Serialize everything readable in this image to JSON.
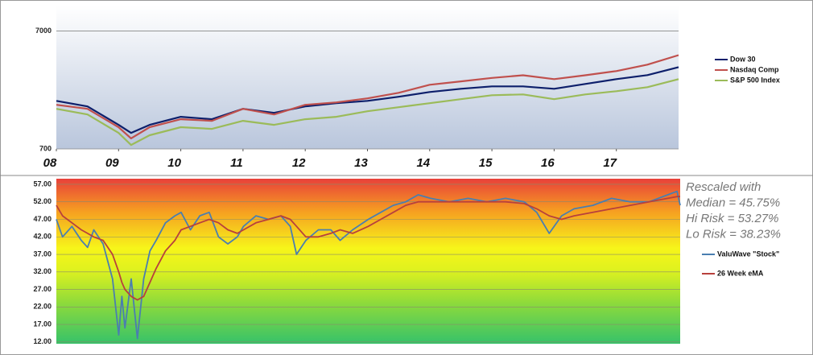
{
  "chart_data": [
    {
      "type": "line",
      "log": true,
      "grid": true,
      "x": [
        2008,
        2008.5,
        2009,
        2009.2,
        2009.5,
        2010,
        2010.5,
        2011,
        2011.5,
        2012,
        2012.5,
        2013,
        2013.5,
        2014,
        2014.5,
        2015,
        2015.5,
        2016,
        2016.5,
        2017,
        2017.5,
        2018
      ],
      "xlim": [
        2008,
        2018
      ],
      "xticks": [
        {
          "value": 2008,
          "label": "08"
        },
        {
          "value": 2009,
          "label": "09"
        },
        2010,
        2011,
        2012,
        2013,
        2014,
        2015,
        2016,
        2017
      ],
      "ylim": [
        700,
        11500
      ],
      "yticks": [
        700,
        7000
      ],
      "series": [
        {
          "name": "Dow 30",
          "color": "#0d1f6b",
          "values": [
            1791,
            1606,
            1120,
            957,
            1120,
            1310,
            1250,
            1532,
            1416,
            1606,
            1710,
            1791,
            1938,
            2129,
            2266,
            2376,
            2376,
            2266,
            2490,
            2735,
            2958,
            3460
          ]
        },
        {
          "name": "Nasdaq Comp",
          "color": "#c0504d",
          "values": [
            1657,
            1532,
            1070,
            860,
            1070,
            1250,
            1211,
            1532,
            1373,
            1657,
            1737,
            1878,
            2095,
            2450,
            2617,
            2800,
            2950,
            2735,
            2950,
            3200,
            3630,
            4375
          ]
        },
        {
          "name": "S&P 500 Index",
          "color": "#9bbb59",
          "values": [
            1532,
            1373,
            957,
            756,
            915,
            1070,
            1035,
            1211,
            1120,
            1250,
            1310,
            1462,
            1581,
            1710,
            1849,
            1999,
            2030,
            1849,
            2030,
            2162,
            2340,
            2735
          ]
        }
      ]
    },
    {
      "type": "line",
      "grid": true,
      "x": [
        2008,
        2008.1,
        2008.25,
        2008.4,
        2008.5,
        2008.6,
        2008.75,
        2008.9,
        2009,
        2009.05,
        2009.1,
        2009.2,
        2009.3,
        2009.4,
        2009.5,
        2009.6,
        2009.75,
        2009.9,
        2010,
        2010.15,
        2010.3,
        2010.45,
        2010.6,
        2010.75,
        2010.9,
        2011,
        2011.2,
        2011.4,
        2011.6,
        2011.75,
        2011.85,
        2012,
        2012.2,
        2012.4,
        2012.55,
        2012.75,
        2013,
        2013.2,
        2013.4,
        2013.6,
        2013.8,
        2014,
        2014.3,
        2014.6,
        2014.9,
        2015.2,
        2015.5,
        2015.7,
        2015.9,
        2016.1,
        2016.3,
        2016.6,
        2016.9,
        2017.2,
        2017.5,
        2017.8,
        2017.95,
        2018
      ],
      "xlim": [
        2008,
        2018
      ],
      "ylim": [
        11.5,
        58.6
      ],
      "yticks": [
        {
          "value": 12,
          "label": "12.00"
        },
        {
          "value": 17,
          "label": "17.00"
        },
        {
          "value": 22,
          "label": "22.00"
        },
        {
          "value": 27,
          "label": "27.00"
        },
        {
          "value": 32,
          "label": "32.00"
        },
        {
          "value": 37,
          "label": "37.00"
        },
        {
          "value": 42,
          "label": "42.00"
        },
        {
          "value": 47,
          "label": "47.00"
        },
        {
          "value": 52,
          "label": "52.00"
        },
        {
          "value": 57,
          "label": "57.00"
        }
      ],
      "annotations": [
        "Rescaled with",
        "Median = 45.75%",
        "Hi Risk = 53.27%",
        "Lo Risk = 38.23%"
      ],
      "series": [
        {
          "name": "ValuWave \"Stock\"",
          "color": "#4a7eb0",
          "values": [
            47,
            42,
            45,
            41,
            39,
            44,
            40,
            30,
            14,
            25,
            16,
            30,
            13,
            30,
            38,
            41,
            46,
            48,
            49,
            44,
            48,
            49,
            42,
            40,
            42,
            45,
            48,
            47,
            48,
            45,
            37,
            41,
            44,
            44,
            41,
            44,
            47,
            49,
            51,
            52,
            54,
            53,
            52,
            53,
            52,
            53,
            52,
            49,
            43,
            48,
            50,
            51,
            53,
            52,
            52,
            54,
            55,
            51
          ]
        },
        {
          "name": "26 Week eMA",
          "color": "#b8403c",
          "values": [
            51,
            48,
            46,
            44,
            43,
            42,
            41,
            37,
            32,
            29,
            27,
            25,
            24,
            25,
            29,
            33,
            38,
            41,
            44,
            45,
            46,
            47,
            46,
            44,
            43,
            44,
            46,
            47,
            48,
            47,
            45,
            42,
            42,
            43,
            44,
            43,
            45,
            47,
            49,
            51,
            52,
            52,
            52,
            52,
            52,
            52,
            51.5,
            50,
            48,
            47,
            48,
            49,
            50,
            51,
            52,
            53,
            53.5,
            53.5
          ]
        }
      ]
    }
  ]
}
